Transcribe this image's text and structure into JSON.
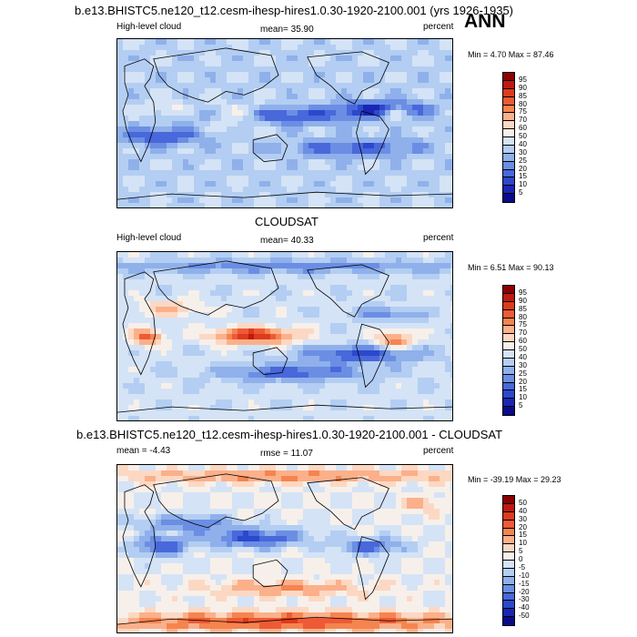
{
  "header": {
    "case_title": "b.e13.BHISTC5.ne120_t12.cesm-ihesp-hires1.0.30-1920-2100.001 (yrs 1926-1935)",
    "season": "ANN"
  },
  "colors": {
    "low": "#0a0a8a",
    "mid": "#ffffff",
    "high": "#8b0000",
    "land_outline": "#000000"
  },
  "chart_data": [
    {
      "type": "heatmap",
      "title": "",
      "left_label": "High-level cloud",
      "mean_text": "mean=  35.90",
      "units": "percent",
      "minmax_text": "Min =   4.70 Max =  87.46",
      "colorbar_levels": [
        "95",
        "90",
        "85",
        "80",
        "75",
        "70",
        "60",
        "50",
        "40",
        "30",
        "25",
        "20",
        "15",
        "10",
        "5"
      ],
      "colorbar_colors": [
        "#8b0000",
        "#c1190e",
        "#dd3b1c",
        "#ee5a35",
        "#f6844f",
        "#fbb08a",
        "#fcd8c3",
        "#f7f0ea",
        "#d5e3f6",
        "#b3cef2",
        "#8fb0ea",
        "#6b8ee4",
        "#4868db",
        "#2c48cc",
        "#1a26b3",
        "#0a0a8a"
      ],
      "value_range": [
        4.7,
        87.46
      ]
    },
    {
      "type": "heatmap",
      "title": "CLOUDSAT",
      "left_label": "High-level cloud",
      "mean_text": "mean=  40.33",
      "units": "percent",
      "minmax_text": "Min =   6.51 Max =  90.13",
      "colorbar_levels": [
        "95",
        "90",
        "85",
        "80",
        "75",
        "70",
        "60",
        "50",
        "40",
        "30",
        "25",
        "20",
        "15",
        "10",
        "5"
      ],
      "colorbar_colors": [
        "#8b0000",
        "#c1190e",
        "#dd3b1c",
        "#ee5a35",
        "#f6844f",
        "#fbb08a",
        "#fcd8c3",
        "#f7f0ea",
        "#d5e3f6",
        "#b3cef2",
        "#8fb0ea",
        "#6b8ee4",
        "#4868db",
        "#2c48cc",
        "#1a26b3",
        "#0a0a8a"
      ],
      "value_range": [
        6.51,
        90.13
      ]
    },
    {
      "type": "heatmap",
      "title": "b.e13.BHISTC5.ne120_t12.cesm-ihesp-hires1.0.30-1920-2100.001 - CLOUDSAT",
      "left_label": "mean =  -4.43",
      "mean_text": "rmse =  11.07",
      "units": "percent",
      "minmax_text": "Min = -39.19 Max =  29.23",
      "colorbar_levels": [
        "50",
        "40",
        "30",
        "20",
        "15",
        "10",
        "5",
        "0",
        "-5",
        "-10",
        "-15",
        "-20",
        "-30",
        "-40",
        "-50"
      ],
      "colorbar_colors": [
        "#8b0000",
        "#c1190e",
        "#dd3b1c",
        "#ee5a35",
        "#f6844f",
        "#fbb08a",
        "#fcd8c3",
        "#f7f0ea",
        "#d5e3f6",
        "#b3cef2",
        "#8fb0ea",
        "#6b8ee4",
        "#4868db",
        "#2c48cc",
        "#1a26b3",
        "#0a0a8a"
      ],
      "value_range": [
        -39.19,
        29.23
      ]
    }
  ]
}
